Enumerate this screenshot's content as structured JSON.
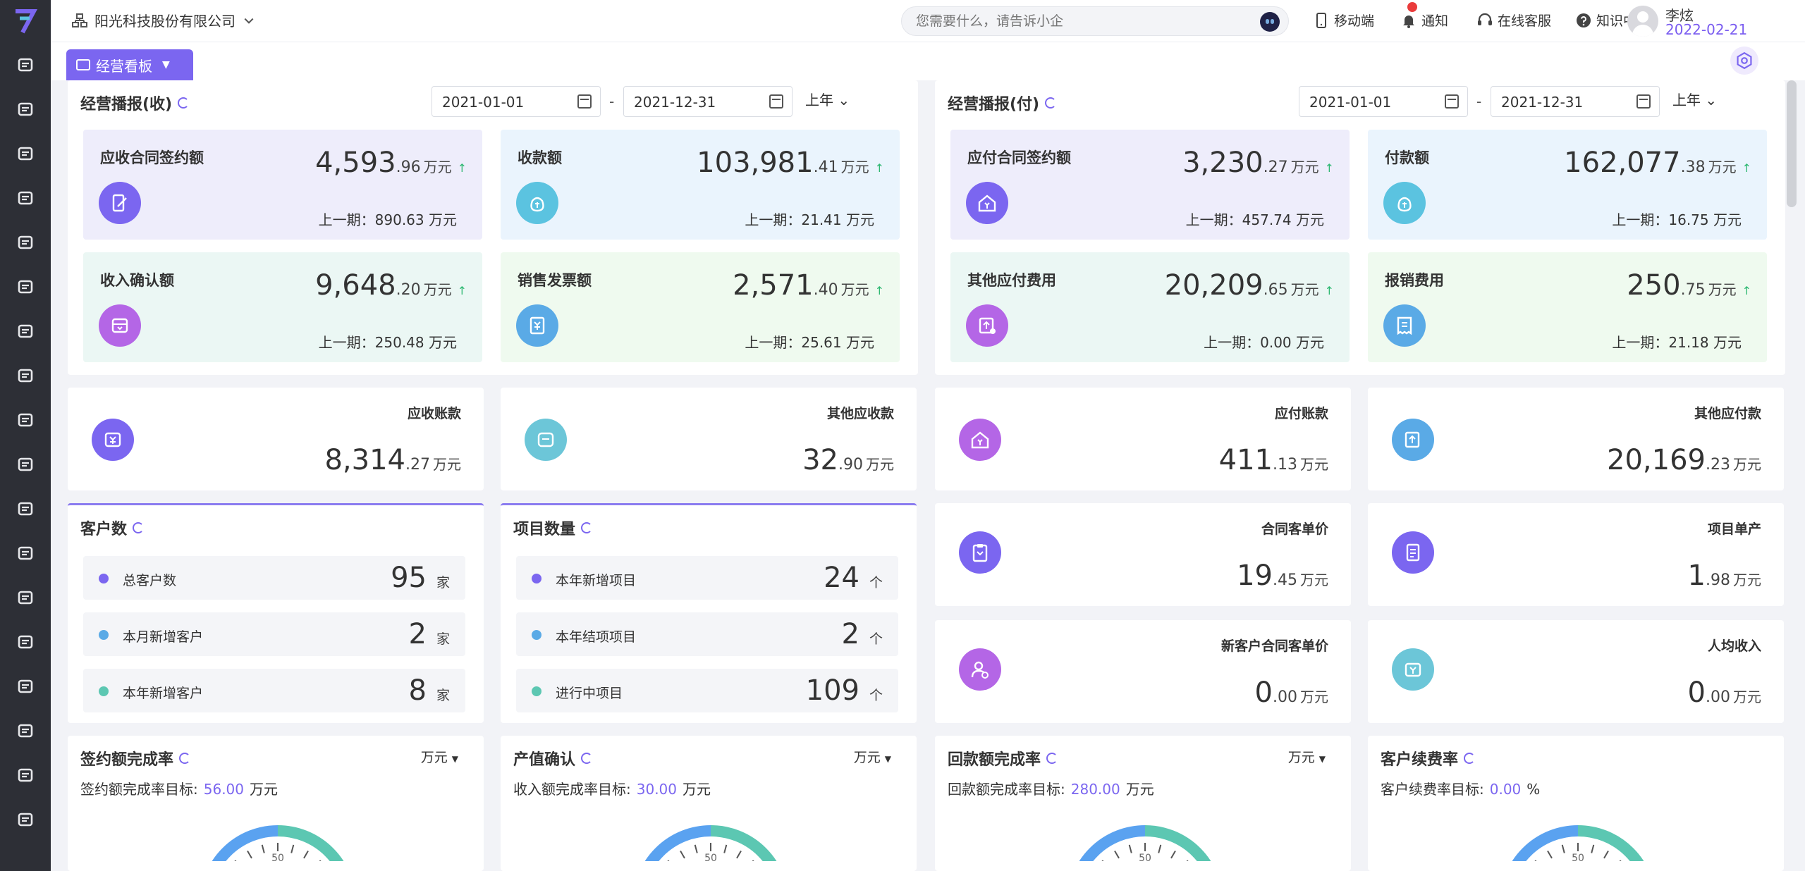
{
  "company": "阳光科技股份有限公司",
  "search": {
    "placeholder": "您需要什么，请告诉小企"
  },
  "topnav": {
    "mobile": "移动端",
    "notify": "通知",
    "service": "在线客服",
    "knowledge": "知识中心"
  },
  "user": {
    "name": "李炫",
    "date": "2022-02-21"
  },
  "tab": {
    "label": "经营看板"
  },
  "income_panel": {
    "title": "经营播报(收)",
    "start": "2021-01-01",
    "end": "2021-12-31",
    "period": "上年",
    "metrics": [
      {
        "name": "应收合同签约额",
        "int": "4,593",
        "dec": ".96",
        "unit": "万元",
        "prev": "上一期：890.63 万元",
        "bg": "#eeedfb",
        "icon_color": "#7b66f0",
        "icon": "edit-doc-icon"
      },
      {
        "name": "收款额",
        "int": "103,981",
        "dec": ".41",
        "unit": "万元",
        "prev": "上一期：21.41 万元",
        "bg": "#eaf4fd",
        "icon_color": "#5bc3e0",
        "icon": "money-bag-icon"
      },
      {
        "name": "收入确认额",
        "int": "9,648",
        "dec": ".20",
        "unit": "万元",
        "prev": "上一期：250.48 万元",
        "bg": "#ebf7f4",
        "icon_color": "#b466e6",
        "icon": "inbox-icon"
      },
      {
        "name": "销售发票额",
        "int": "2,571",
        "dec": ".40",
        "unit": "万元",
        "prev": "上一期：25.61 万元",
        "bg": "#effaef",
        "icon_color": "#5aaae6",
        "icon": "invoice-icon"
      }
    ]
  },
  "payment_panel": {
    "title": "经营播报(付)",
    "start": "2021-01-01",
    "end": "2021-12-31",
    "period": "上年",
    "metrics": [
      {
        "name": "应付合同签约额",
        "int": "3,230",
        "dec": ".27",
        "unit": "万元",
        "prev": "上一期：457.74 万元",
        "bg": "#eeedfb",
        "icon_color": "#7b66f0",
        "icon": "home-yuan-icon"
      },
      {
        "name": "付款额",
        "int": "162,077",
        "dec": ".38",
        "unit": "万元",
        "prev": "上一期：16.75 万元",
        "bg": "#eaf4fd",
        "icon_color": "#5bc3e0",
        "icon": "money-bag-icon"
      },
      {
        "name": "其他应付费用",
        "int": "20,209",
        "dec": ".65",
        "unit": "万元",
        "prev": "上一期：0.00 万元",
        "bg": "#ebf7f4",
        "icon_color": "#b466e6",
        "icon": "upload-doc-icon"
      },
      {
        "name": "报销费用",
        "int": "250",
        "dec": ".75",
        "unit": "万元",
        "prev": "上一期：21.18 万元",
        "bg": "#effaef",
        "icon_color": "#5aaae6",
        "icon": "receipt-icon"
      }
    ]
  },
  "stats_row1": [
    {
      "label": "应收账款",
      "int": "8,314",
      "dec": ".27",
      "unit": "万元",
      "icon_color": "#7b66f0",
      "icon": "receivable-icon"
    },
    {
      "label": "其他应收款",
      "int": "32",
      "dec": ".90",
      "unit": "万元",
      "icon_color": "#6cc6d8",
      "icon": "other-receivable-icon"
    },
    {
      "label": "应付账款",
      "int": "411",
      "dec": ".13",
      "unit": "万元",
      "icon_color": "#b466e6",
      "icon": "payable-icon"
    },
    {
      "label": "其他应付款",
      "int": "20,169",
      "dec": ".23",
      "unit": "万元",
      "icon_color": "#5aaae6",
      "icon": "other-payable-icon"
    }
  ],
  "customers": {
    "title": "客户数",
    "rows": [
      {
        "label": "总客户数",
        "value": "95",
        "unit": "家",
        "color": "#7b66f0"
      },
      {
        "label": "本月新增客户",
        "value": "2",
        "unit": "家",
        "color": "#5aaae6"
      },
      {
        "label": "本年新增客户",
        "value": "8",
        "unit": "家",
        "color": "#5cc7b2"
      }
    ]
  },
  "projects": {
    "title": "项目数量",
    "rows": [
      {
        "label": "本年新增项目",
        "value": "24",
        "unit": "个",
        "color": "#7b66f0"
      },
      {
        "label": "本年结项项目",
        "value": "2",
        "unit": "个",
        "color": "#5aaae6"
      },
      {
        "label": "进行中项目",
        "value": "109",
        "unit": "个",
        "color": "#5cc7b2"
      }
    ]
  },
  "stats_row2": [
    {
      "label": "合同客单价",
      "int": "19",
      "dec": ".45",
      "unit": "万元",
      "icon_color": "#7b66f0",
      "icon": "clipboard-icon"
    },
    {
      "label": "项目单产",
      "int": "1",
      "dec": ".98",
      "unit": "万元",
      "icon_color": "#7b66f0",
      "icon": "document-icon"
    },
    {
      "label": "新客户合同客单价",
      "int": "0",
      "dec": ".00",
      "unit": "万元",
      "icon_color": "#b466e6",
      "icon": "user-yuan-icon"
    },
    {
      "label": "人均收入",
      "int": "0",
      "dec": ".00",
      "unit": "万元",
      "icon_color": "#6cc6d8",
      "icon": "wallet-icon"
    }
  ],
  "rates": [
    {
      "title": "签约额完成率",
      "sub_label": "签约额完成率目标:",
      "target": "56.00",
      "unit": "万元",
      "select": "万元"
    },
    {
      "title": "产值确认",
      "sub_label": "收入额完成率目标:",
      "target": "30.00",
      "unit": "万元",
      "select": "万元"
    },
    {
      "title": "回款额完成率",
      "sub_label": "回款额完成率目标:",
      "target": "280.00",
      "unit": "万元",
      "select": "万元"
    },
    {
      "title": "客户续费率",
      "sub_label": "客户续费率目标:",
      "target": "0.00",
      "unit": "%",
      "select": ""
    }
  ],
  "gauge_tick": "50",
  "colors": {
    "accent": "#7b66f0",
    "up": "#2eb872",
    "gauge_blue": "#5aa2f0",
    "gauge_teal": "#5cc7b2"
  }
}
